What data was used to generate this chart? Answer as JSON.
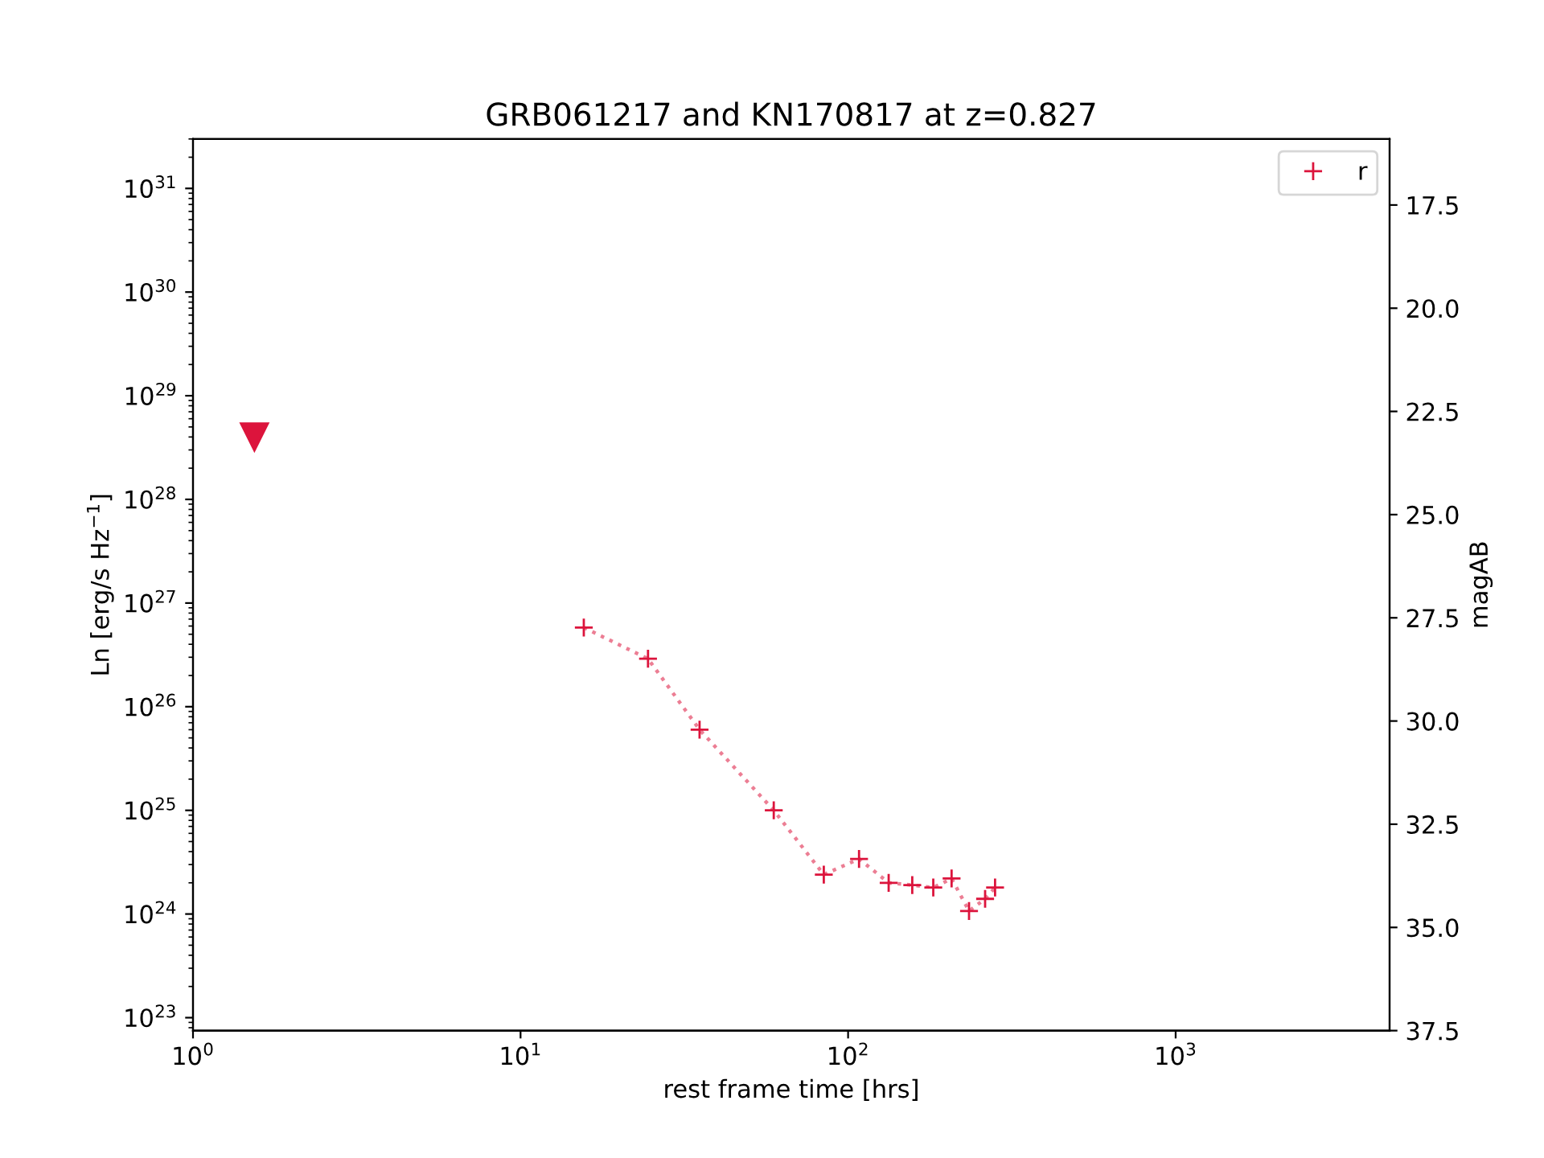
{
  "chart_data": {
    "type": "scatter",
    "title": "GRB061217 and KN170817 at z=0.827",
    "xlabel": "rest frame time [hrs]",
    "ylabel": "Ln [erg/s Hz$^{−1}$]",
    "y2label": "magAB",
    "log": "xy",
    "grid": false,
    "legend": "top right",
    "xlim": [
      1,
      4500
    ],
    "xticks": [
      {
        "value": 1,
        "label": "10$^{0}$"
      },
      {
        "value": 10,
        "label": "10$^{1}$"
      },
      {
        "value": 100,
        "label": "10$^{2}$"
      },
      {
        "value": 1000,
        "label": "10$^{3}$"
      }
    ],
    "ylim": [
      7.5e+22,
      3e+31
    ],
    "yticks": [
      {
        "value": 1e+23,
        "label": "10$^{23}$"
      },
      {
        "value": 1e+24,
        "label": "10$^{24}$"
      },
      {
        "value": 1e+25,
        "label": "10$^{25}$"
      },
      {
        "value": 1e+26,
        "label": "10$^{26}$"
      },
      {
        "value": 1e+27,
        "label": "10$^{27}$"
      },
      {
        "value": 1e+28,
        "label": "10$^{28}$"
      },
      {
        "value": 1e+29,
        "label": "10$^{29}$"
      },
      {
        "value": 1e+30,
        "label": "10$^{30}$"
      },
      {
        "value": 1e+31,
        "label": "10$^{31}$"
      }
    ],
    "y2lim": [
      37.5,
      15.9
    ],
    "y2ticks": [
      {
        "value": 17.5,
        "label": "17.5"
      },
      {
        "value": 20,
        "label": "20.0"
      },
      {
        "value": 22.5,
        "label": "22.5"
      },
      {
        "value": 25,
        "label": "25.0"
      },
      {
        "value": 27.5,
        "label": "27.5"
      },
      {
        "value": 30,
        "label": "30.0"
      },
      {
        "value": 32.5,
        "label": "32.5"
      },
      {
        "value": 35,
        "label": "35.0"
      },
      {
        "value": 37.5,
        "label": "37.5"
      }
    ],
    "series": [
      {
        "marker": "triangle",
        "color": "#dc143c",
        "x": [
          1.54
        ],
        "values": [
          4e+28
        ]
      },
      {
        "type": "line",
        "name": "r",
        "marker": "cross",
        "line_style": "dotted",
        "color": "#dc143c",
        "x": [
          15.6,
          24.5,
          35.2,
          59.3,
          84.3,
          108,
          133,
          157,
          182,
          207,
          234,
          262,
          281
        ],
        "values": [
          5.8e+26,
          2.9e+26,
          6e+25,
          1e+25,
          2.4e+24,
          3.4e+24,
          2e+24,
          1.9e+24,
          1.8e+24,
          2.2e+24,
          1.07e+24,
          1.4e+24,
          1.8e+24
        ]
      }
    ]
  }
}
